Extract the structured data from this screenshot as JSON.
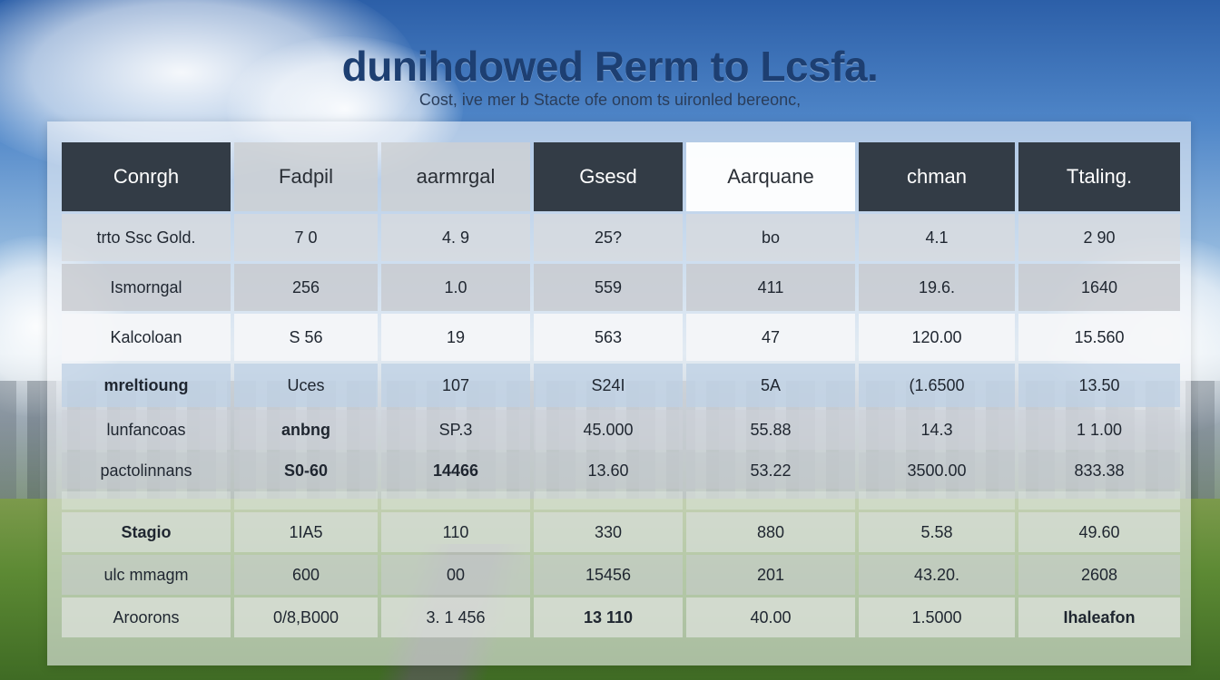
{
  "header": {
    "title": "dunihdowed Rerm to Lcsfa.",
    "subtitle": "Cost, ive   mer b Stacte ofe onom ts uironled bereonc,"
  },
  "table": {
    "columns": [
      "Conrgh",
      "Fadpil",
      "aarmrgal",
      "Gsesd",
      "Aarquane",
      "chman",
      "Ttaling."
    ],
    "rows": [
      [
        "trto Ssc Gold.",
        "7 0",
        "4. 9",
        "25?",
        "bo",
        "4.1",
        "2 90"
      ],
      [
        "Ismorngal",
        "256",
        "1.0",
        "559",
        "411",
        "19.6.",
        "1640"
      ],
      [
        "Kalcoloan",
        "S 56",
        "19",
        "563",
        "47",
        "120.00",
        "15.560"
      ],
      [
        "mreltioung",
        "Uces",
        "107",
        "S24I",
        "5A",
        "(1.6500",
        "13.50"
      ],
      [
        "lunfancoas",
        "anbng",
        "SP.3",
        "45.000",
        "55.88",
        "14.3",
        "1 1.00"
      ],
      [
        "pactolinnans",
        "S0-60",
        "14466",
        "13.60",
        "53.22",
        "3500.00",
        "833.38"
      ],
      [
        "Stagio",
        "1IA5",
        "110",
        "330",
        "880",
        "5.58",
        "49.60"
      ],
      [
        "ulc mmagm",
        "600",
        "00",
        "15456",
        "201",
        "43.20.",
        "2608"
      ],
      [
        "Aroorons",
        "0/8,B000",
        "3. 1 456",
        "13 110",
        "40.00",
        "1.5000",
        "Ihaleafon"
      ]
    ]
  }
}
